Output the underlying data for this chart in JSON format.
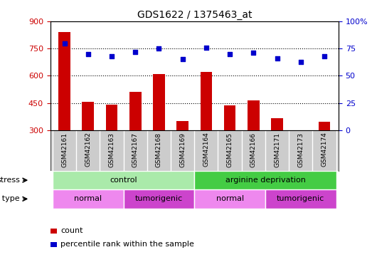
{
  "title": "GDS1622 / 1375463_at",
  "samples": [
    "GSM42161",
    "GSM42162",
    "GSM42163",
    "GSM42167",
    "GSM42168",
    "GSM42169",
    "GSM42164",
    "GSM42165",
    "GSM42166",
    "GSM42171",
    "GSM42173",
    "GSM42174"
  ],
  "counts": [
    840,
    455,
    440,
    510,
    610,
    350,
    620,
    435,
    465,
    365,
    300,
    345
  ],
  "percentile_ranks": [
    80,
    70,
    68,
    72,
    75,
    65,
    76,
    70,
    71,
    66,
    63,
    68
  ],
  "bar_color": "#cc0000",
  "dot_color": "#0000cc",
  "ylim_left": [
    300,
    900
  ],
  "ylim_right": [
    0,
    100
  ],
  "yticks_left": [
    300,
    450,
    600,
    750,
    900
  ],
  "yticks_right": [
    0,
    25,
    50,
    75,
    100
  ],
  "grid_values": [
    450,
    600,
    750
  ],
  "stress_groups": [
    {
      "label": "control",
      "start": 0,
      "end": 6,
      "color": "#aaeaaa"
    },
    {
      "label": "arginine deprivation",
      "start": 6,
      "end": 12,
      "color": "#44cc44"
    }
  ],
  "cell_type_groups": [
    {
      "label": "normal",
      "start": 0,
      "end": 3,
      "color": "#ee88ee"
    },
    {
      "label": "tumorigenic",
      "start": 3,
      "end": 6,
      "color": "#cc44cc"
    },
    {
      "label": "normal",
      "start": 6,
      "end": 9,
      "color": "#ee88ee"
    },
    {
      "label": "tumorigenic",
      "start": 9,
      "end": 12,
      "color": "#cc44cc"
    }
  ],
  "legend_count_label": "count",
  "legend_pct_label": "percentile rank within the sample",
  "stress_label": "stress",
  "cell_type_label": "cell type",
  "background_color": "#ffffff",
  "sample_box_color": "#cccccc",
  "bar_width": 0.5,
  "right_yaxis_color": "#0000cc",
  "left_yaxis_color": "#cc0000"
}
